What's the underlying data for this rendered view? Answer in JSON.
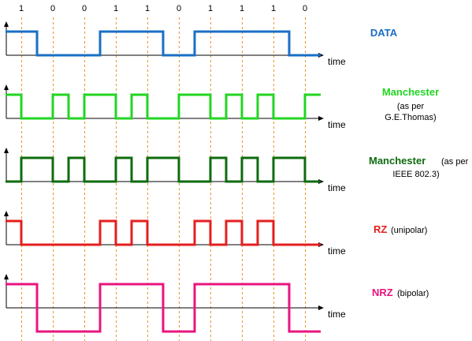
{
  "bits": [
    "1",
    "0",
    "0",
    "1",
    "1",
    "0",
    "1",
    "1",
    "1",
    "0"
  ],
  "time_label": "time",
  "colors": {
    "axis": "#000000",
    "grid": "#e8962e",
    "data": "#1a6fc4",
    "manchester_thomas": "#22d622",
    "manchester_ieee": "#0e6b0e",
    "rz": "#e51e1e",
    "nrz": "#e8157f"
  },
  "signals": [
    {
      "key": "data",
      "name": "DATA",
      "sub_lines": [],
      "color": "#1a6fc4",
      "encoding": "nrz-unipolar",
      "levels": [
        1,
        1,
        0,
        0,
        0,
        0,
        1,
        1,
        1,
        1,
        0,
        0,
        1,
        1,
        1,
        1,
        1,
        1,
        0,
        0
      ]
    },
    {
      "key": "manchester_thomas",
      "name": "Manchester",
      "sub_lines": [
        "(as per",
        "G.E.Thomas)"
      ],
      "color": "#22d622",
      "encoding": "manchester-thomas",
      "levels": [
        1,
        0,
        0,
        1,
        0,
        1,
        1,
        0,
        1,
        0,
        0,
        1,
        1,
        0,
        1,
        0,
        1,
        0,
        0,
        1
      ]
    },
    {
      "key": "manchester_ieee",
      "name": "Manchester",
      "name_suffix": "(as per",
      "sub_lines": [
        "IEEE 802.3)"
      ],
      "color": "#0e6b0e",
      "encoding": "manchester-ieee",
      "levels": [
        0,
        1,
        1,
        0,
        1,
        0,
        0,
        1,
        0,
        1,
        1,
        0,
        0,
        1,
        0,
        1,
        0,
        1,
        1,
        0
      ]
    },
    {
      "key": "rz",
      "name": "RZ",
      "name_suffix": "(unipolar)",
      "sub_lines": [],
      "color": "#e51e1e",
      "encoding": "rz-unipolar",
      "levels": [
        1,
        0,
        0,
        0,
        0,
        0,
        1,
        0,
        1,
        0,
        0,
        0,
        1,
        0,
        1,
        0,
        1,
        0,
        0,
        0
      ]
    },
    {
      "key": "nrz",
      "name": "NRZ",
      "name_suffix": "(bipolar)",
      "sub_lines": [],
      "color": "#e8157f",
      "encoding": "nrz-bipolar",
      "levels": [
        1,
        1,
        -1,
        -1,
        -1,
        -1,
        1,
        1,
        1,
        1,
        -1,
        -1,
        1,
        1,
        1,
        1,
        1,
        1,
        -1,
        -1
      ]
    }
  ]
}
